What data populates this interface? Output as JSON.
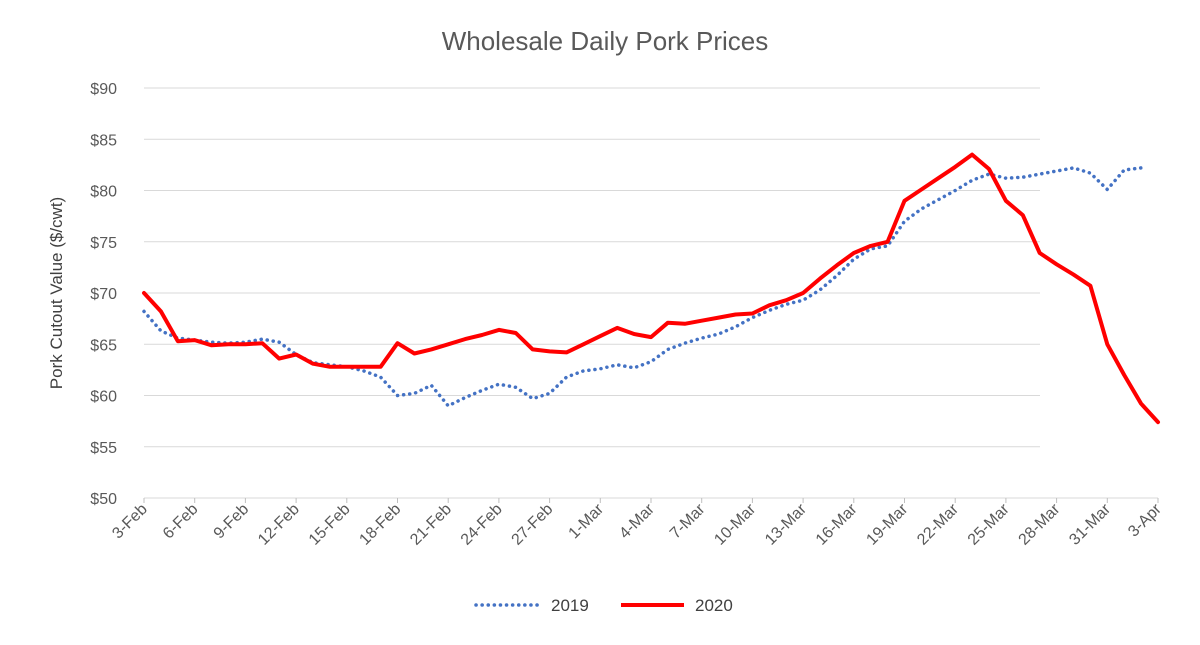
{
  "chart_data": {
    "type": "line",
    "title": "Wholesale Daily Pork Prices",
    "xlabel": "",
    "ylabel": "Pork Cutout Value ($/cwt)",
    "ylim": [
      50,
      90
    ],
    "ytick_labels": [
      "$50",
      "$55",
      "$60",
      "$65",
      "$70",
      "$75",
      "$80",
      "$85",
      "$90"
    ],
    "x_start": "3-Feb",
    "x_end": "3-Apr",
    "xtick_labels": [
      "3-Feb",
      "6-Feb",
      "9-Feb",
      "12-Feb",
      "15-Feb",
      "18-Feb",
      "21-Feb",
      "24-Feb",
      "27-Feb",
      "1-Mar",
      "4-Mar",
      "7-Mar",
      "10-Mar",
      "13-Mar",
      "16-Mar",
      "19-Mar",
      "22-Mar",
      "25-Mar",
      "28-Mar",
      "31-Mar",
      "3-Apr"
    ],
    "grid": true,
    "legend_position": "bottom",
    "series": [
      {
        "name": "2019",
        "color": "#4472C4",
        "style": "dotted",
        "points": [
          [
            "3-Feb",
            68.2
          ],
          [
            "4-Feb",
            66.3
          ],
          [
            "5-Feb",
            65.6
          ],
          [
            "6-Feb",
            65.4
          ],
          [
            "7-Feb",
            65.2
          ],
          [
            "8-Feb",
            65.1
          ],
          [
            "9-Feb",
            65.2
          ],
          [
            "10-Feb",
            65.5
          ],
          [
            "11-Feb",
            65.2
          ],
          [
            "12-Feb",
            64.0
          ],
          [
            "13-Feb",
            63.2
          ],
          [
            "14-Feb",
            63.0
          ],
          [
            "15-Feb",
            62.8
          ],
          [
            "16-Feb",
            62.4
          ],
          [
            "17-Feb",
            61.8
          ],
          [
            "18-Feb",
            60.0
          ],
          [
            "19-Feb",
            60.2
          ],
          [
            "20-Feb",
            61.0
          ],
          [
            "21-Feb",
            59.0
          ],
          [
            "22-Feb",
            59.8
          ],
          [
            "23-Feb",
            60.5
          ],
          [
            "24-Feb",
            61.1
          ],
          [
            "25-Feb",
            60.8
          ],
          [
            "26-Feb",
            59.7
          ],
          [
            "27-Feb",
            60.2
          ],
          [
            "28-Feb",
            61.8
          ],
          [
            "29-Feb",
            62.4
          ],
          [
            "1-Mar",
            62.6
          ],
          [
            "2-Mar",
            63.0
          ],
          [
            "3-Mar",
            62.7
          ],
          [
            "4-Mar",
            63.3
          ],
          [
            "5-Mar",
            64.5
          ],
          [
            "6-Mar",
            65.1
          ],
          [
            "7-Mar",
            65.6
          ],
          [
            "8-Mar",
            66.0
          ],
          [
            "9-Mar",
            66.7
          ],
          [
            "10-Mar",
            67.6
          ],
          [
            "11-Mar",
            68.3
          ],
          [
            "12-Mar",
            68.9
          ],
          [
            "13-Mar",
            69.3
          ],
          [
            "14-Mar",
            70.3
          ],
          [
            "15-Mar",
            71.7
          ],
          [
            "16-Mar",
            73.3
          ],
          [
            "17-Mar",
            74.3
          ],
          [
            "18-Mar",
            74.6
          ],
          [
            "19-Mar",
            77.0
          ],
          [
            "20-Mar",
            78.2
          ],
          [
            "21-Mar",
            79.1
          ],
          [
            "22-Mar",
            80.0
          ],
          [
            "23-Mar",
            81.0
          ],
          [
            "24-Mar",
            81.6
          ],
          [
            "25-Mar",
            81.2
          ],
          [
            "26-Mar",
            81.3
          ],
          [
            "27-Mar",
            81.6
          ],
          [
            "28-Mar",
            81.9
          ],
          [
            "29-Mar",
            82.2
          ],
          [
            "30-Mar",
            81.7
          ],
          [
            "31-Mar",
            80.1
          ],
          [
            "1-Apr",
            82.0
          ],
          [
            "2-Apr",
            82.2
          ]
        ]
      },
      {
        "name": "2020",
        "color": "#FF0000",
        "style": "solid",
        "points": [
          [
            "3-Feb",
            70.0
          ],
          [
            "4-Feb",
            68.2
          ],
          [
            "5-Feb",
            65.3
          ],
          [
            "6-Feb",
            65.4
          ],
          [
            "7-Feb",
            64.9
          ],
          [
            "8-Feb",
            65.0
          ],
          [
            "9-Feb",
            65.0
          ],
          [
            "10-Feb",
            65.1
          ],
          [
            "11-Feb",
            63.6
          ],
          [
            "12-Feb",
            64.0
          ],
          [
            "13-Feb",
            63.1
          ],
          [
            "14-Feb",
            62.8
          ],
          [
            "15-Feb",
            62.8
          ],
          [
            "16-Feb",
            62.8
          ],
          [
            "17-Feb",
            62.8
          ],
          [
            "18-Feb",
            65.1
          ],
          [
            "19-Feb",
            64.1
          ],
          [
            "20-Feb",
            64.5
          ],
          [
            "21-Feb",
            65.0
          ],
          [
            "22-Feb",
            65.5
          ],
          [
            "23-Feb",
            65.9
          ],
          [
            "24-Feb",
            66.4
          ],
          [
            "25-Feb",
            66.1
          ],
          [
            "26-Feb",
            64.5
          ],
          [
            "27-Feb",
            64.3
          ],
          [
            "28-Feb",
            64.2
          ],
          [
            "29-Feb",
            65.0
          ],
          [
            "1-Mar",
            65.8
          ],
          [
            "2-Mar",
            66.6
          ],
          [
            "3-Mar",
            66.0
          ],
          [
            "4-Mar",
            65.7
          ],
          [
            "5-Mar",
            67.1
          ],
          [
            "6-Mar",
            67.0
          ],
          [
            "7-Mar",
            67.3
          ],
          [
            "8-Mar",
            67.6
          ],
          [
            "9-Mar",
            67.9
          ],
          [
            "10-Mar",
            68.0
          ],
          [
            "11-Mar",
            68.8
          ],
          [
            "12-Mar",
            69.3
          ],
          [
            "13-Mar",
            70.0
          ],
          [
            "14-Mar",
            71.4
          ],
          [
            "15-Mar",
            72.7
          ],
          [
            "16-Mar",
            73.9
          ],
          [
            "17-Mar",
            74.6
          ],
          [
            "18-Mar",
            75.0
          ],
          [
            "19-Mar",
            79.0
          ],
          [
            "20-Mar",
            80.1
          ],
          [
            "21-Mar",
            81.2
          ],
          [
            "22-Mar",
            82.3
          ],
          [
            "23-Mar",
            83.5
          ],
          [
            "24-Mar",
            82.1
          ],
          [
            "25-Mar",
            79.0
          ],
          [
            "26-Mar",
            77.6
          ],
          [
            "27-Mar",
            73.9
          ],
          [
            "28-Mar",
            72.8
          ],
          [
            "29-Mar",
            71.8
          ],
          [
            "30-Mar",
            70.7
          ],
          [
            "31-Mar",
            65.0
          ],
          [
            "1-Apr",
            62.0
          ],
          [
            "2-Apr",
            59.2
          ],
          [
            "3-Apr",
            57.4
          ]
        ]
      }
    ]
  }
}
